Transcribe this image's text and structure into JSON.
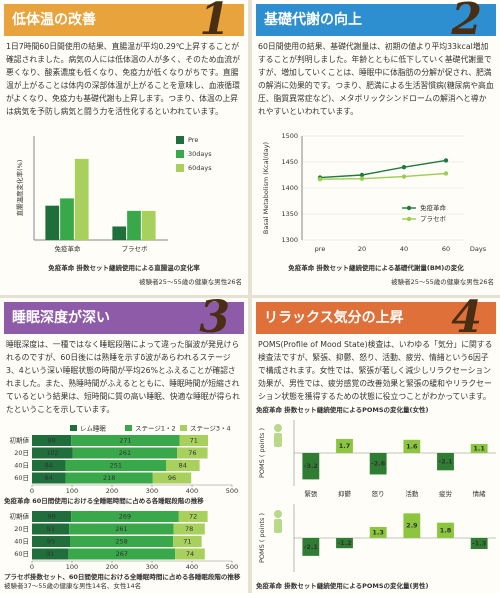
{
  "panels": [
    {
      "number": "1",
      "title": "低体温の改善",
      "body": "1日7時間60日間使用の結果、直腸温が平均0.29℃上昇することが確認されました。病気の人には低体温の人が多く、そのため血流が悪くなり、酸素濃度も低くなり、免疫力が低くなりがちです。直腸温が上がることは体内の深部体温が上がることを意味し、血液循環がよくなり、免疫力も基礎代謝も上昇します。つまり、体温の上昇は病気を予防し病気と闘う力を活性化するといわれています。"
    },
    {
      "number": "2",
      "title": "基礎代謝の向上",
      "body": "60日間使用の結果、基礎代謝量は、初期の値より平均33kcal増加することが判明しました。年齢とともに低下していく基礎代謝量ですが、増加していくことは、睡眠中に体脂肪の分解が促され、肥満の解消に効果的です。つまり、肥満による生活習慣病(糖尿病や高血圧、脂質異常症など)、メタボリックシンドロームの解消へと導かれやすいといわれています。"
    },
    {
      "number": "3",
      "title": "睡眠深度が深い",
      "body": "睡眠深度は、一種ではなく睡眠段階によって違った脳波が発見けられるのですが、60日後には熟睡を示すδ波があらわれるステージ3、4という深い睡眠状態の時間が平均26%とふえることが確認されました。また、熟睡時間がふえるとともに、睡眠時間が短縮されているという結果は、短時間に質の高い睡眠、快適な睡眠が得られたということを示しています。"
    },
    {
      "number": "4",
      "title": "リラックス気分の上昇",
      "body": "POMS(Profile of Mood State)検査は、いわゆる「気分」に関する検査法ですが、緊張、抑鬱、怒り、活動、疲労、情緒という6因子で構成されます。女性では、緊張が著しく減少しリラクセーション効果が、男性では、疲労感覚の改善効果と緊張の緩和やリラクセーション状態を獲得するための状態に役立つことがわかっています。"
    }
  ],
  "chart_data": [
    {
      "type": "bar",
      "caption": "免疫革命 掛数セット継続使用による直腸温の変化率",
      "note": "被験者25〜55歳の健康な男性26名",
      "ylabel": "直腸温度変化率(%)",
      "categories": [
        "免疫革命",
        "プラセボ"
      ],
      "series": [
        {
          "name": "Pre",
          "color": "#1f6e3c",
          "values": [
            0.33,
            0.13
          ]
        },
        {
          "name": "30days",
          "color": "#39a84a",
          "values": [
            0.4,
            0.28
          ]
        },
        {
          "name": "60days",
          "color": "#a8d05c",
          "values": [
            0.78,
            0.28
          ]
        }
      ],
      "ylim": [
        0,
        1
      ],
      "legend": "upper right"
    },
    {
      "type": "line",
      "caption": "免疫革命 掛数セット継続使用による基礎代謝量(BM)の変化",
      "note": "被験者25〜55歳の健康な男性26名",
      "ylabel": "Basal Metabolism (Kcal/day)",
      "xlabel": "Days",
      "categories": [
        "pre",
        "20",
        "40",
        "60"
      ],
      "series": [
        {
          "name": "免疫革命",
          "color": "#1f7a3c",
          "values": [
            1420,
            1425,
            1440,
            1453
          ]
        },
        {
          "name": "プラセボ",
          "color": "#9ccc50",
          "values": [
            1417,
            1418,
            1422,
            1428
          ]
        }
      ],
      "ylim": [
        1300,
        1500
      ],
      "yticks": [
        1300,
        1350,
        1400,
        1450,
        1500
      ],
      "grid": true,
      "legend": "lower right"
    },
    {
      "type": "bar",
      "orientation": "horizontal",
      "stacked": true,
      "categories": [
        "初期値",
        "20日",
        "40日",
        "60日"
      ],
      "series": [
        {
          "name": "レム睡眠",
          "color": "#1f6e3c"
        },
        {
          "name": "ステージ1・2",
          "color": "#39a84a"
        },
        {
          "name": "ステージ3・4",
          "color": "#a8d05c"
        }
      ],
      "xlim": [
        0,
        500
      ],
      "xticks": [
        0,
        100,
        200,
        300,
        400,
        500
      ],
      "subcharts": [
        {
          "caption": "免疫革命 60日間使用における全睡眠時間に占める各睡眠段階の推移",
          "values": [
            [
              98,
              102,
              84,
              84
            ],
            [
              271,
              261,
              251,
              218
            ],
            [
              71,
              76,
              84,
              96
            ]
          ]
        },
        {
          "caption": "プラセボ掛数セット、60日間使用における全睡眠時間に占める各睡眠段階の推移",
          "values": [
            [
              98,
              93,
              95,
              91
            ],
            [
              269,
              261,
              258,
              267
            ],
            [
              72,
              78,
              71,
              74
            ]
          ]
        }
      ],
      "note": "被験者37〜55歳の健康な男性14名、女性14名"
    },
    {
      "type": "bar",
      "title": "免疫革命 掛数セット継続使用によるPOMSの変化量(女性)",
      "ylabel": "POMS ( points )",
      "categories": [
        "緊張",
        "抑鬱",
        "怒り",
        "活動",
        "疲労",
        "情緒"
      ],
      "values": [
        -3.2,
        1.7,
        -2.6,
        1.6,
        -2.1,
        1.1
      ],
      "ylim": [
        -4,
        4
      ],
      "colors": {
        "positive": "#8cc63f",
        "negative": "#2e7d32"
      }
    },
    {
      "type": "bar",
      "title": "免疫革命 掛数セット継続使用によるPOMSの変化量(男性)",
      "ylabel": "POMS ( points )",
      "values": [
        -2.1,
        -1.2,
        1.3,
        2.9,
        1.8,
        -1.3
      ],
      "ylim": [
        -4,
        4
      ],
      "colors": {
        "positive": "#8cc63f",
        "negative": "#2e7d32"
      }
    }
  ]
}
